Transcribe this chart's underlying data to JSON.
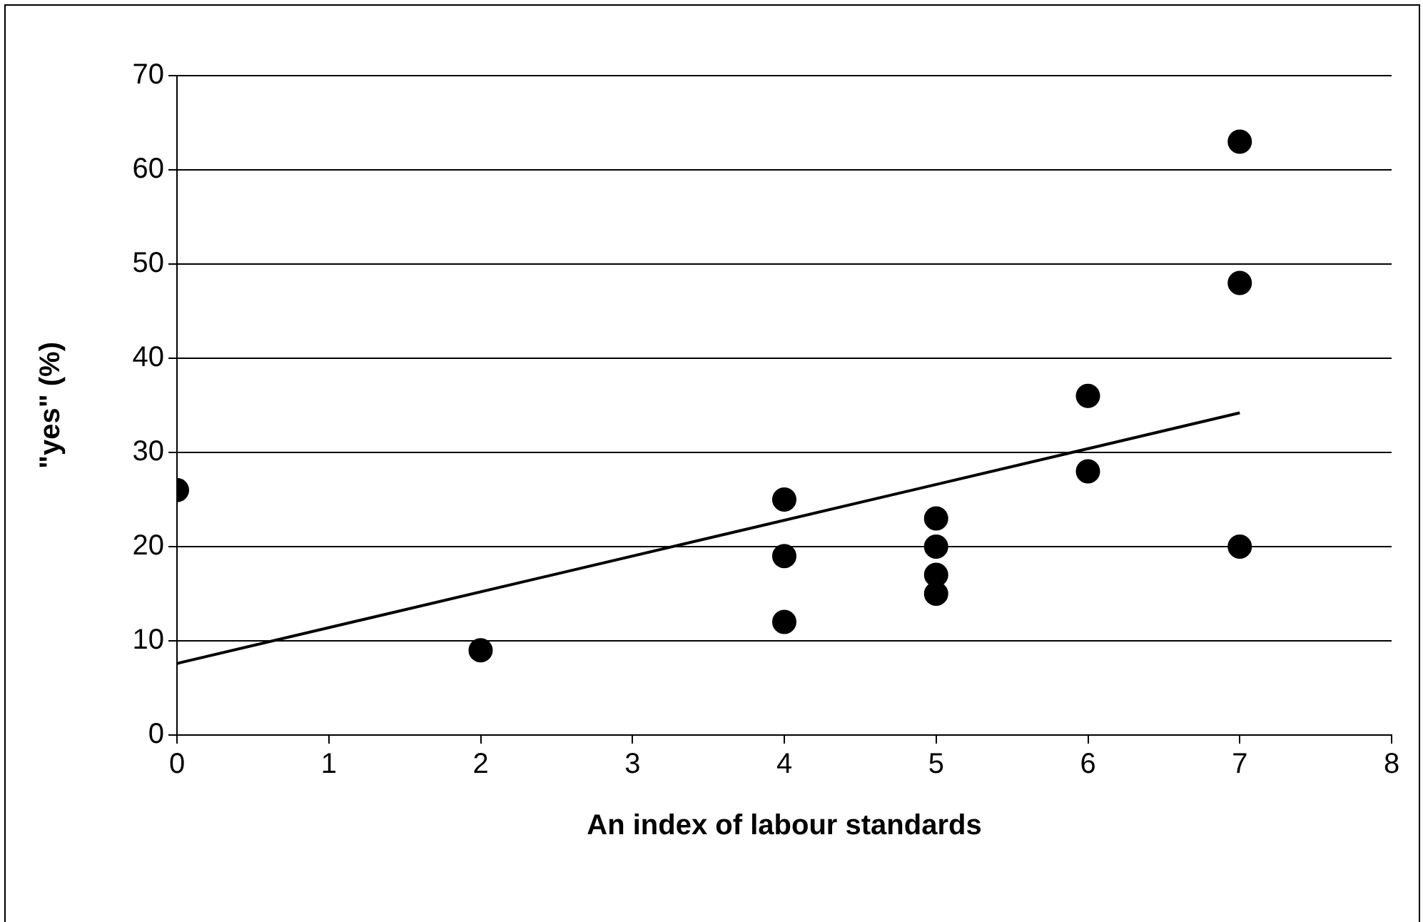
{
  "chart_data": {
    "type": "scatter",
    "xlabel": "An index of labour standards",
    "ylabel": "\"yes\" (%)",
    "xlim": [
      0,
      8
    ],
    "xticks": [
      0,
      1,
      2,
      3,
      4,
      5,
      6,
      7,
      8
    ],
    "ylim": [
      0,
      70
    ],
    "yticks": [
      0,
      10,
      20,
      30,
      40,
      50,
      60,
      70
    ],
    "grid": "y",
    "legend": false,
    "marker": "circle",
    "series": [
      {
        "type": "scatter",
        "color": "#000000",
        "x": [
          0,
          2,
          4,
          4,
          4,
          5,
          5,
          5,
          5,
          6,
          6,
          7,
          7,
          7
        ],
        "values": [
          26,
          9,
          25,
          19,
          12,
          23,
          20,
          17,
          15,
          36,
          28,
          63,
          48,
          20
        ]
      },
      {
        "type": "line",
        "color": "#000000",
        "marker": "none",
        "line_style": "solid",
        "x": [
          0,
          7
        ],
        "values": [
          7.6,
          34.2
        ]
      }
    ]
  }
}
